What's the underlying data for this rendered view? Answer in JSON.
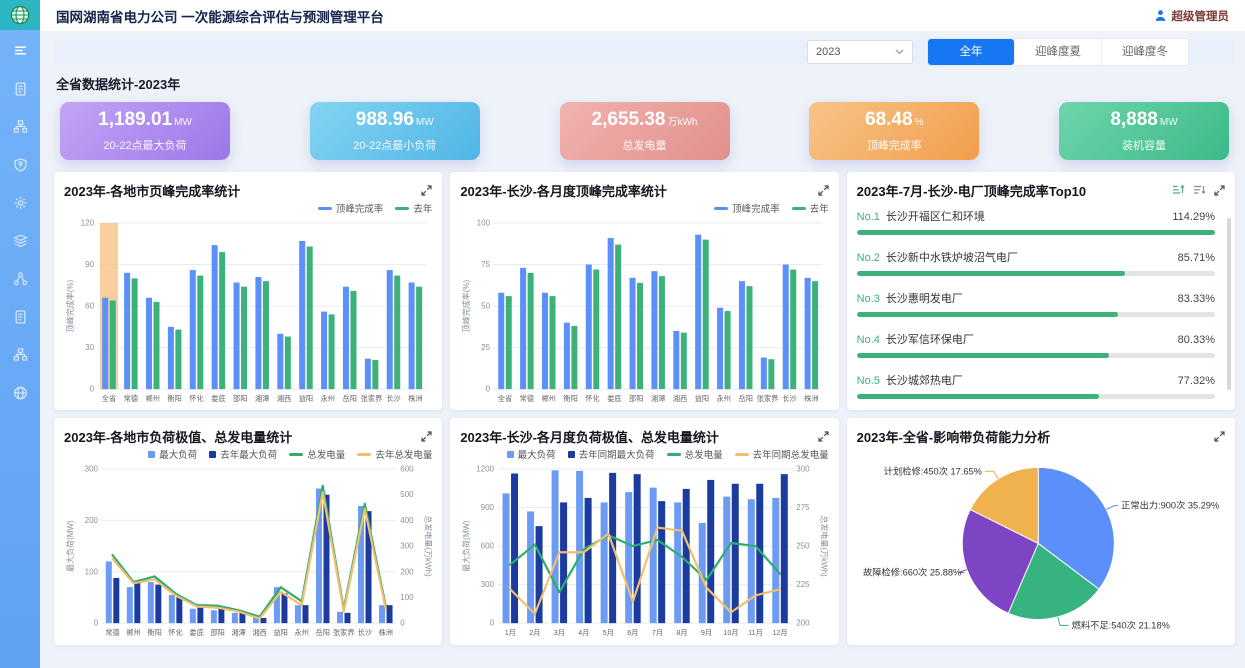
{
  "header": {
    "title": "国网湖南省电力公司 一次能源综合评估与预测管理平台",
    "user": "超级管理员"
  },
  "sidebar": {
    "items": [
      {
        "icon": "menu",
        "active": true
      },
      {
        "icon": "document",
        "active": false
      },
      {
        "icon": "topology",
        "active": false
      },
      {
        "icon": "shield",
        "active": false
      },
      {
        "icon": "gear",
        "active": false
      },
      {
        "icon": "layers",
        "active": false
      },
      {
        "icon": "share",
        "active": false
      },
      {
        "icon": "document",
        "active": false
      },
      {
        "icon": "topology",
        "active": false
      },
      {
        "icon": "globe",
        "active": false
      }
    ]
  },
  "filters": {
    "year": "2023",
    "tabs": [
      {
        "label": "全年",
        "active": true
      },
      {
        "label": "迎峰度夏",
        "active": false
      },
      {
        "label": "迎峰度冬",
        "active": false
      }
    ]
  },
  "stats": {
    "section_title": "全省数据统计-2023年",
    "cards": [
      {
        "value": "1,189.01",
        "unit": "MW",
        "label": "20-22点最大负荷",
        "color_from": "#c3a5f6",
        "color_to": "#9b77e8"
      },
      {
        "value": "988.96",
        "unit": "MW",
        "label": "20-22点最小负荷",
        "color_from": "#85d4f1",
        "color_to": "#4fb5e6"
      },
      {
        "value": "2,655.38",
        "unit": "万kWh",
        "label": "总发电量",
        "color_from": "#f2b3ae",
        "color_to": "#e28f8b"
      },
      {
        "value": "68.48",
        "unit": "%",
        "label": "顶峰完成率",
        "color_from": "#f8c489",
        "color_to": "#f19e4c"
      },
      {
        "value": "8,888",
        "unit": "MW",
        "label": "装机容量",
        "color_from": "#6fd5ab",
        "color_to": "#3cba88"
      }
    ]
  },
  "chart_data": [
    {
      "type": "bar",
      "title": "2023年-各地市页峰完成率统计",
      "ylabel": "顶峰完成率(%)",
      "ylim": [
        0,
        120
      ],
      "yticks": [
        0,
        30,
        60,
        90,
        120
      ],
      "grid": true,
      "legend_position": "top-right",
      "highlight_category": "全省",
      "highlight_color": "#f6c287",
      "categories": [
        "全省",
        "常德",
        "郴州",
        "衡阳",
        "怀化",
        "娄底",
        "邵阳",
        "湘潭",
        "湘西",
        "益阳",
        "永州",
        "岳阳",
        "张家界",
        "长沙",
        "株洲"
      ],
      "series": [
        {
          "name": "顶峰完成率",
          "color": "#5b8ff9",
          "values": [
            66,
            84,
            66,
            45,
            86,
            104,
            77,
            81,
            40,
            107,
            56,
            74,
            22,
            86,
            77
          ]
        },
        {
          "name": "去年",
          "color": "#3cb179",
          "values": [
            64,
            80,
            63,
            43,
            82,
            99,
            74,
            78,
            38,
            103,
            54,
            71,
            21,
            82,
            74
          ]
        }
      ]
    },
    {
      "type": "bar",
      "title": "2023年-长沙-各月度顶峰完成率统计",
      "ylabel": "顶峰完成率(%)",
      "ylim": [
        0,
        100
      ],
      "yticks": [
        0,
        25,
        50,
        75,
        100
      ],
      "grid": true,
      "legend_position": "top-right",
      "categories": [
        "全省",
        "常德",
        "郴州",
        "衡阳",
        "怀化",
        "娄底",
        "邵阳",
        "湘潭",
        "湘西",
        "益阳",
        "永州",
        "岳阳",
        "张家界",
        "长沙",
        "株洲"
      ],
      "series": [
        {
          "name": "顶峰完成率",
          "color": "#5b8ff9",
          "values": [
            58,
            73,
            58,
            40,
            75,
            91,
            67,
            71,
            35,
            93,
            49,
            65,
            19,
            75,
            67
          ]
        },
        {
          "name": "去年",
          "color": "#3cb179",
          "values": [
            56,
            70,
            56,
            38,
            72,
            87,
            64,
            68,
            34,
            90,
            47,
            62,
            18,
            72,
            65
          ]
        }
      ]
    },
    {
      "type": "bar",
      "orientation": "horizontal",
      "title": "2023年-7月-长沙-电厂顶峰完成率Top10",
      "bar_color": "#3cb179",
      "track_color": "#e4e4e6",
      "max_value": 114.29,
      "items": [
        {
          "rank": "No.1",
          "name": "长沙开福区仁和环境",
          "value": 114.29,
          "display": "114.29%"
        },
        {
          "rank": "No.2",
          "name": "长沙新中水铁炉坡沼气电厂",
          "value": 85.71,
          "display": "85.71%"
        },
        {
          "rank": "No.3",
          "name": "长沙惠明发电厂",
          "value": 83.33,
          "display": "83.33%"
        },
        {
          "rank": "No.4",
          "name": "长沙军信环保电厂",
          "value": 80.33,
          "display": "80.33%"
        },
        {
          "rank": "No.5",
          "name": "长沙城郊热电厂",
          "value": 77.32,
          "display": "77.32%"
        }
      ]
    },
    {
      "type": "bar+line",
      "title": "2023年-各地市负荷极值、总发电量统计",
      "ylabel_left": "最大负荷(MW)",
      "ylabel_right": "总发电量(万kWh)",
      "ylim_left": [
        0,
        300
      ],
      "yticks_left": [
        0,
        100,
        200,
        300
      ],
      "ylim_right": [
        0,
        600
      ],
      "yticks_right": [
        0,
        100,
        200,
        300,
        400,
        500,
        600
      ],
      "grid": true,
      "categories": [
        "常德",
        "郴州",
        "衡阳",
        "怀化",
        "娄底",
        "邵阳",
        "湘潭",
        "湘西",
        "益阳",
        "永州",
        "岳阳",
        "张家界",
        "长沙",
        "株洲"
      ],
      "bar_series": [
        {
          "name": "最大负荷",
          "color": "#6d9bf3",
          "values": [
            120,
            70,
            80,
            55,
            28,
            25,
            20,
            12,
            70,
            35,
            262,
            22,
            228,
            35
          ]
        },
        {
          "name": "去年最大负荷",
          "color": "#1b3b9e",
          "values": [
            88,
            78,
            75,
            50,
            30,
            30,
            22,
            10,
            58,
            35,
            250,
            20,
            218,
            35
          ]
        }
      ],
      "line_series": [
        {
          "name": "总发电量",
          "color": "#2fae6e",
          "values": [
            265,
            160,
            182,
            115,
            70,
            68,
            50,
            25,
            140,
            85,
            535,
            55,
            465,
            65
          ]
        },
        {
          "name": "去年总发电量",
          "color": "#f0c070",
          "values": [
            250,
            155,
            170,
            108,
            65,
            60,
            45,
            18,
            122,
            70,
            510,
            45,
            445,
            55
          ]
        }
      ]
    },
    {
      "type": "bar+line",
      "title": "2023年-长沙-各月度负荷极值、总发电量统计",
      "ylabel_left": "最大负荷(MW)",
      "ylabel_right": "总发电量(万kWh)",
      "ylim_left": [
        0,
        1200
      ],
      "yticks_left": [
        0,
        300,
        600,
        900,
        1200
      ],
      "ylim_right": [
        200,
        300
      ],
      "yticks_right": [
        200,
        225,
        250,
        275,
        300
      ],
      "grid": true,
      "categories": [
        "1月",
        "2月",
        "3月",
        "4月",
        "5月",
        "6月",
        "7月",
        "8月",
        "9月",
        "10月",
        "11月",
        "12月"
      ],
      "bar_series": [
        {
          "name": "最大负荷",
          "color": "#6d9bf3",
          "values": [
            1010,
            870,
            1190,
            1185,
            940,
            1020,
            1055,
            940,
            780,
            985,
            965,
            975
          ]
        },
        {
          "name": "去年同期最大负荷",
          "color": "#1b3b9e",
          "values": [
            1165,
            755,
            940,
            975,
            1170,
            1160,
            950,
            1045,
            1115,
            1085,
            1085,
            1160
          ]
        }
      ],
      "line_series": [
        {
          "name": "总发电量",
          "color": "#2fae6e",
          "values": [
            238,
            251,
            220,
            248,
            257,
            250,
            254,
            243,
            228,
            252,
            250,
            232
          ]
        },
        {
          "name": "去年同期总发电量",
          "color": "#f0c070",
          "values": [
            222,
            206,
            246,
            246,
            258,
            214,
            262,
            260,
            223,
            207,
            218,
            222
          ]
        }
      ]
    },
    {
      "type": "pie",
      "title": "2023年-全省-影响带负荷能力分析",
      "slices": [
        {
          "label": "正常出力",
          "count": "900次",
          "pct": 35.29,
          "color": "#5b8ff9"
        },
        {
          "label": "燃料不足",
          "count": "540次",
          "pct": 21.18,
          "color": "#36b37e"
        },
        {
          "label": "故障检修",
          "count": "660次",
          "pct": 25.88,
          "color": "#7d44c4"
        },
        {
          "label": "计划检修",
          "count": "450次",
          "pct": 17.65,
          "color": "#f0b14f"
        }
      ]
    }
  ]
}
